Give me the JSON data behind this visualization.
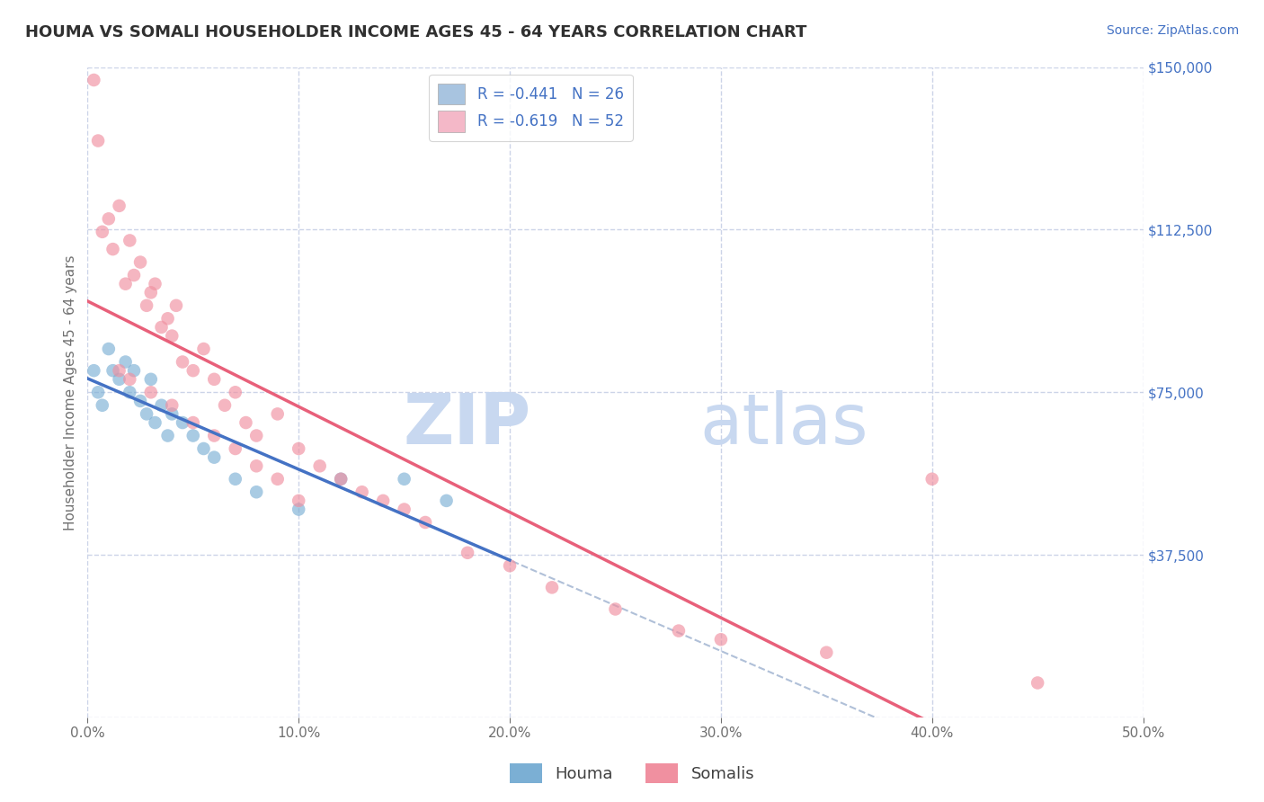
{
  "title": "HOUMA VS SOMALI HOUSEHOLDER INCOME AGES 45 - 64 YEARS CORRELATION CHART",
  "source": "Source: ZipAtlas.com",
  "xlabel_vals": [
    0.0,
    10.0,
    20.0,
    30.0,
    40.0,
    50.0
  ],
  "ylabel_vals": [
    0,
    37500,
    75000,
    112500,
    150000
  ],
  "ylabel_ticks": [
    "",
    "$37,500",
    "$75,000",
    "$112,500",
    "$150,000"
  ],
  "ylabel": "Householder Income Ages 45 - 64 years",
  "legend_items": [
    {
      "label": "R = -0.441   N = 26",
      "color": "#a8c4e0"
    },
    {
      "label": "R = -0.619   N = 52",
      "color": "#f4b8c8"
    }
  ],
  "bottom_legend": [
    "Houma",
    "Somalis"
  ],
  "houma_color": "#7bafd4",
  "somali_color": "#f090a0",
  "houma_line_color": "#4472c4",
  "somali_line_color": "#e8607a",
  "dashed_line_color": "#b0c0d8",
  "watermark_zip": "ZIP",
  "watermark_atlas": "atlas",
  "watermark_color": "#c8d8f0",
  "houma_x": [
    0.3,
    0.5,
    0.7,
    1.0,
    1.2,
    1.5,
    1.8,
    2.0,
    2.2,
    2.5,
    2.8,
    3.0,
    3.2,
    3.5,
    3.8,
    4.0,
    4.5,
    5.0,
    5.5,
    6.0,
    7.0,
    8.0,
    10.0,
    12.0,
    15.0,
    17.0
  ],
  "houma_y": [
    80000,
    75000,
    72000,
    85000,
    80000,
    78000,
    82000,
    75000,
    80000,
    73000,
    70000,
    78000,
    68000,
    72000,
    65000,
    70000,
    68000,
    65000,
    62000,
    60000,
    55000,
    52000,
    48000,
    55000,
    55000,
    50000
  ],
  "somali_x": [
    0.3,
    0.5,
    0.7,
    1.0,
    1.2,
    1.5,
    1.8,
    2.0,
    2.2,
    2.5,
    2.8,
    3.0,
    3.2,
    3.5,
    3.8,
    4.0,
    4.2,
    4.5,
    5.0,
    5.5,
    6.0,
    6.5,
    7.0,
    7.5,
    8.0,
    9.0,
    10.0,
    11.0,
    12.0,
    13.0,
    14.0,
    15.0,
    16.0,
    18.0,
    20.0,
    22.0,
    25.0,
    28.0,
    30.0,
    35.0,
    40.0,
    45.0,
    1.5,
    2.0,
    3.0,
    4.0,
    5.0,
    6.0,
    7.0,
    8.0,
    9.0,
    10.0
  ],
  "somali_y": [
    147000,
    133000,
    112000,
    115000,
    108000,
    118000,
    100000,
    110000,
    102000,
    105000,
    95000,
    98000,
    100000,
    90000,
    92000,
    88000,
    95000,
    82000,
    80000,
    85000,
    78000,
    72000,
    75000,
    68000,
    65000,
    70000,
    62000,
    58000,
    55000,
    52000,
    50000,
    48000,
    45000,
    38000,
    35000,
    30000,
    25000,
    20000,
    18000,
    15000,
    55000,
    8000,
    80000,
    78000,
    75000,
    72000,
    68000,
    65000,
    62000,
    58000,
    55000,
    50000
  ],
  "xlim": [
    0,
    50
  ],
  "ylim": [
    0,
    150000
  ],
  "figsize": [
    14.06,
    8.92
  ],
  "dpi": 100,
  "background_color": "#ffffff",
  "grid_color": "#ccd4e8",
  "title_color": "#303030",
  "source_color": "#4472c4",
  "axis_label_color": "#707070",
  "tick_color_y": "#4472c4",
  "tick_color_x": "#707070"
}
